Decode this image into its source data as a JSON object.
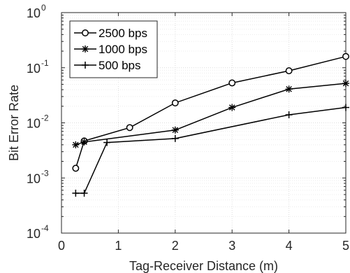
{
  "chart_data": {
    "type": "line",
    "title": "",
    "xlabel": "Tag-Receiver Distance (m)",
    "ylabel": "Bit Error Rate",
    "xlim": [
      0,
      5
    ],
    "ylim": [
      0.0001,
      1
    ],
    "yscale": "log",
    "grid": true,
    "legend_position": "top-left",
    "x_ticks": [
      0,
      1,
      2,
      3,
      4,
      5
    ],
    "y_ticks": [
      {
        "value": 0.0001,
        "base": "10",
        "exp": "-4"
      },
      {
        "value": 0.001,
        "base": "10",
        "exp": "-3"
      },
      {
        "value": 0.01,
        "base": "10",
        "exp": "-2"
      },
      {
        "value": 0.1,
        "base": "10",
        "exp": "-1"
      },
      {
        "value": 1,
        "base": "10",
        "exp": "0"
      }
    ],
    "series": [
      {
        "name": "2500 bps",
        "marker": "circle",
        "x": [
          0.25,
          0.4,
          1.2,
          2.0,
          3.0,
          4.0,
          5.0
        ],
        "y": [
          0.0015,
          0.0047,
          0.0082,
          0.023,
          0.053,
          0.088,
          0.16
        ]
      },
      {
        "name": "1000 bps",
        "marker": "star",
        "x": [
          0.25,
          0.4,
          2.0,
          3.0,
          4.0,
          5.0
        ],
        "y": [
          0.004,
          0.0045,
          0.0074,
          0.019,
          0.041,
          0.052
        ]
      },
      {
        "name": "500 bps",
        "marker": "plus",
        "x": [
          0.25,
          0.4,
          0.8,
          2.0,
          4.0,
          5.0
        ],
        "y": [
          0.00053,
          0.00053,
          0.0044,
          0.0052,
          0.014,
          0.019
        ]
      }
    ]
  }
}
